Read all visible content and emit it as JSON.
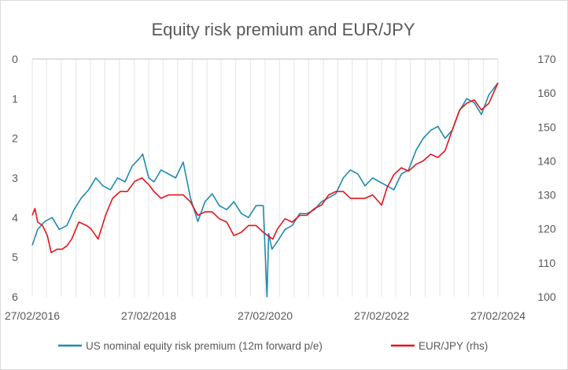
{
  "chart_data": {
    "type": "line",
    "title": "Equity risk premium and EUR/JPY",
    "xlabel": "",
    "ylabel": "",
    "x_ticks": [
      "27/02/2016",
      "27/02/2018",
      "27/02/2020",
      "27/02/2022",
      "27/02/2024"
    ],
    "x_range": [
      "2016-02-27",
      "2024-02-27"
    ],
    "y_left": {
      "ticks": [
        "0",
        "1",
        "2",
        "3",
        "4",
        "5",
        "6"
      ],
      "range": [
        0,
        6
      ],
      "inverted": true
    },
    "y_right": {
      "ticks": [
        "170",
        "160",
        "150",
        "140",
        "130",
        "120",
        "110",
        "100"
      ],
      "range": [
        100,
        170
      ]
    },
    "grid": {
      "vertical": true,
      "horizontal": false
    },
    "legend_position": "bottom",
    "series": [
      {
        "name": "US nominal equity risk premium (12m forward p/e)",
        "axis": "left",
        "color": "#1f8bb0",
        "x": [
          "2016-02-27",
          "2016-04-01",
          "2016-05-15",
          "2016-07-01",
          "2016-08-15",
          "2016-10-01",
          "2016-11-15",
          "2017-01-01",
          "2017-02-15",
          "2017-04-01",
          "2017-05-15",
          "2017-07-01",
          "2017-08-15",
          "2017-10-01",
          "2017-11-15",
          "2018-01-01",
          "2018-01-20",
          "2018-02-27",
          "2018-04-01",
          "2018-05-15",
          "2018-07-01",
          "2018-08-15",
          "2018-10-01",
          "2018-11-15",
          "2019-01-01",
          "2019-02-15",
          "2019-04-01",
          "2019-05-15",
          "2019-07-01",
          "2019-08-15",
          "2019-10-01",
          "2019-11-15",
          "2020-01-01",
          "2020-02-15",
          "2020-03-10",
          "2020-03-20",
          "2020-04-10",
          "2020-05-15",
          "2020-07-01",
          "2020-08-15",
          "2020-10-01",
          "2020-11-15",
          "2021-01-01",
          "2021-02-15",
          "2021-04-01",
          "2021-05-15",
          "2021-07-01",
          "2021-08-15",
          "2021-10-01",
          "2021-11-15",
          "2022-01-01",
          "2022-02-15",
          "2022-04-01",
          "2022-05-15",
          "2022-07-01",
          "2022-08-15",
          "2022-10-01",
          "2022-11-15",
          "2023-01-01",
          "2023-02-15",
          "2023-04-01",
          "2023-05-15",
          "2023-07-01",
          "2023-08-15",
          "2023-10-01",
          "2023-11-15",
          "2024-01-01",
          "2024-02-27"
        ],
        "values": [
          4.7,
          4.3,
          4.1,
          4.0,
          4.3,
          4.2,
          3.8,
          3.5,
          3.3,
          3.0,
          3.2,
          3.3,
          3.0,
          3.1,
          2.7,
          2.5,
          2.4,
          3.0,
          3.1,
          2.8,
          2.9,
          3.0,
          2.6,
          3.5,
          4.1,
          3.6,
          3.4,
          3.7,
          3.8,
          3.6,
          3.9,
          4.0,
          3.7,
          3.7,
          6.0,
          4.4,
          4.8,
          4.6,
          4.3,
          4.2,
          3.9,
          3.9,
          3.8,
          3.6,
          3.5,
          3.4,
          3.0,
          2.8,
          2.9,
          3.2,
          3.0,
          3.1,
          3.2,
          3.3,
          2.9,
          2.8,
          2.3,
          2.0,
          1.8,
          1.7,
          2.0,
          1.8,
          1.3,
          1.0,
          1.1,
          1.4,
          0.9,
          0.6
        ]
      },
      {
        "name": "EUR/JPY (rhs)",
        "axis": "right",
        "color": "#e3141a",
        "x": [
          "2016-02-27",
          "2016-03-15",
          "2016-04-01",
          "2016-05-01",
          "2016-06-01",
          "2016-06-25",
          "2016-08-01",
          "2016-09-01",
          "2016-10-01",
          "2016-11-01",
          "2016-12-15",
          "2017-02-01",
          "2017-03-01",
          "2017-04-15",
          "2017-06-01",
          "2017-07-15",
          "2017-09-01",
          "2017-10-15",
          "2017-12-01",
          "2018-01-15",
          "2018-02-27",
          "2018-04-01",
          "2018-05-15",
          "2018-07-01",
          "2018-08-15",
          "2018-10-01",
          "2018-11-15",
          "2019-01-01",
          "2019-02-15",
          "2019-04-01",
          "2019-05-15",
          "2019-07-01",
          "2019-08-15",
          "2019-10-01",
          "2019-11-15",
          "2020-01-01",
          "2020-02-15",
          "2020-03-15",
          "2020-04-15",
          "2020-05-15",
          "2020-07-01",
          "2020-08-15",
          "2020-10-01",
          "2020-11-15",
          "2021-01-01",
          "2021-02-15",
          "2021-04-01",
          "2021-05-15",
          "2021-07-01",
          "2021-08-15",
          "2021-10-01",
          "2021-11-15",
          "2022-01-01",
          "2022-02-27",
          "2022-04-01",
          "2022-05-15",
          "2022-07-01",
          "2022-08-15",
          "2022-10-01",
          "2022-11-15",
          "2023-01-01",
          "2023-02-15",
          "2023-04-01",
          "2023-05-15",
          "2023-07-01",
          "2023-08-15",
          "2023-10-01",
          "2023-11-15",
          "2024-01-01",
          "2024-02-27"
        ],
        "values": [
          124,
          126,
          122,
          121,
          118,
          113,
          114,
          114,
          115,
          117,
          122,
          121,
          120,
          117,
          124,
          129,
          131,
          131,
          134,
          135,
          133,
          131,
          129,
          130,
          130,
          130,
          128,
          124,
          125,
          125,
          123,
          122,
          118,
          119,
          121,
          121,
          119,
          118,
          117,
          120,
          123,
          122,
          124,
          124,
          126,
          127,
          130,
          131,
          131,
          129,
          129,
          129,
          130,
          127,
          132,
          136,
          138,
          137,
          139,
          140,
          142,
          141,
          143,
          149,
          155,
          157,
          158,
          155,
          157,
          163
        ]
      }
    ]
  },
  "legend": {
    "items": [
      {
        "label": "US nominal equity risk premium (12m forward p/e)",
        "color": "#1f8bb0"
      },
      {
        "label": "EUR/JPY (rhs)",
        "color": "#e3141a"
      }
    ]
  }
}
